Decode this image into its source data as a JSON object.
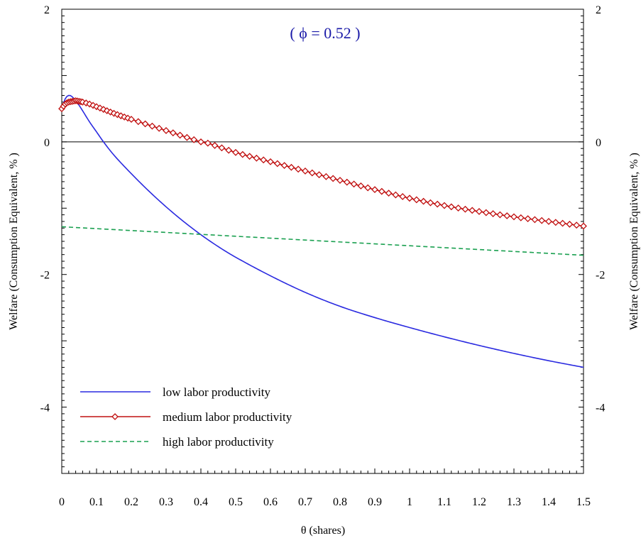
{
  "chart_data": {
    "type": "line",
    "annotation": "( ϕ = 0.52  )",
    "xlabel": "θ (shares)",
    "ylabel_left": "Welfare (Consumption Equivalent, % )",
    "ylabel_right": "Welfare (Consumption Equivalent, % )",
    "xlim": [
      0,
      1.5
    ],
    "ylim": [
      -5,
      2
    ],
    "x_ticks": [
      0,
      0.1,
      0.2,
      0.3,
      0.4,
      0.5,
      0.6,
      0.7,
      0.8,
      0.9,
      1,
      1.1,
      1.2,
      1.3,
      1.4,
      1.5
    ],
    "x_tick_labels": [
      "0",
      "0.1",
      "0.2",
      "0.3",
      "0.4",
      "0.5",
      "0.6",
      "0.7",
      "0.8",
      "0.9",
      "1",
      "1.1",
      "1.2",
      "1.3",
      "1.4",
      "1.5"
    ],
    "y_ticks": [
      2,
      0,
      -2,
      -4
    ],
    "y_tick_labels": [
      "2",
      "0",
      "-2",
      "-4"
    ],
    "zero_line": true,
    "grid": false,
    "legend_position": "bottom-left",
    "series": [
      {
        "name": "low labor productivity",
        "color": "#2a2ae0",
        "style": "solid",
        "marker": "none",
        "x": [
          0,
          0.01,
          0.02,
          0.03,
          0.05,
          0.08,
          0.1,
          0.12,
          0.15,
          0.2,
          0.25,
          0.3,
          0.35,
          0.4,
          0.45,
          0.5,
          0.6,
          0.7,
          0.8,
          0.9,
          1.0,
          1.1,
          1.2,
          1.3,
          1.4,
          1.5
        ],
        "values": [
          0.5,
          0.65,
          0.7,
          0.68,
          0.55,
          0.3,
          0.15,
          0.0,
          -0.2,
          -0.48,
          -0.74,
          -0.98,
          -1.2,
          -1.4,
          -1.58,
          -1.74,
          -2.02,
          -2.27,
          -2.48,
          -2.65,
          -2.8,
          -2.94,
          -3.07,
          -3.19,
          -3.3,
          -3.4
        ]
      },
      {
        "name": "medium labor productivity",
        "color": "#c01010",
        "style": "solid",
        "marker": "diamond",
        "x": [
          0,
          0.01,
          0.02,
          0.03,
          0.04,
          0.05,
          0.06,
          0.08,
          0.1,
          0.15,
          0.2,
          0.3,
          0.4,
          0.42,
          0.5,
          0.6,
          0.7,
          0.8,
          0.9,
          1.0,
          1.1,
          1.2,
          1.3,
          1.4,
          1.5
        ],
        "values": [
          0.5,
          0.57,
          0.6,
          0.61,
          0.62,
          0.61,
          0.6,
          0.57,
          0.53,
          0.43,
          0.34,
          0.17,
          0.0,
          -0.02,
          -0.16,
          -0.3,
          -0.44,
          -0.58,
          -0.72,
          -0.85,
          -0.96,
          -1.05,
          -1.13,
          -1.2,
          -1.27
        ]
      },
      {
        "name": "high labor productivity",
        "color": "#1aa050",
        "style": "dashed",
        "marker": "none",
        "x": [
          0,
          1.5
        ],
        "values": [
          -1.28,
          -1.71
        ]
      }
    ]
  }
}
